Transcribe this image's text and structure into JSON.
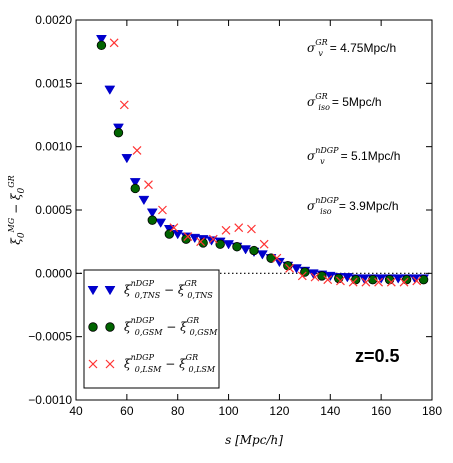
{
  "chart_data": {
    "type": "scatter",
    "title": "",
    "xlabel": "s [Mpc/h]",
    "ylabel": "ξ0^MG − ξ0^GR",
    "xlim": [
      40,
      180
    ],
    "ylim": [
      -0.001,
      0.002
    ],
    "xticks": [
      40,
      60,
      80,
      100,
      120,
      140,
      160,
      180
    ],
    "yticks": [
      -0.001,
      -0.0005,
      0.0,
      0.0005,
      0.001,
      0.0015,
      0.002
    ],
    "xtick_labels": [
      "40",
      "60",
      "80",
      "100",
      "120",
      "140",
      "160",
      "180"
    ],
    "ytick_labels": [
      "−0.0010",
      "−0.0005",
      "0.0000",
      "0.0005",
      "0.0010",
      "0.0015",
      "0.0020"
    ],
    "reference_line": {
      "y": 0.0,
      "style": "dotted"
    },
    "legend_position": "lower-left",
    "annotations": [
      {
        "prefix": "σ",
        "sub": "v",
        "sup": "GR",
        "value": "= 4.75Mpc/h"
      },
      {
        "prefix": "σ",
        "sub": "iso",
        "sup": "GR",
        "value": "= 5Mpc/h"
      },
      {
        "prefix": "σ",
        "sub": "v",
        "sup": "nDGP",
        "value": "= 5.1Mpc/h"
      },
      {
        "prefix": "σ",
        "sub": "iso",
        "sup": "nDGP",
        "value": "= 3.9Mpc/h"
      }
    ],
    "redshift_label": "z=0.5",
    "series": [
      {
        "name": "ξ0,TNS^nDGP − ξ0,TNS^GR",
        "legend": {
          "a": "ξ",
          "a_sup": "nDGP",
          "a_sub": "0,TNS",
          "op": " − ",
          "b": "ξ",
          "b_sup": "GR",
          "b_sub": "0,TNS"
        },
        "marker": "triangle-down",
        "color": "#0000cc",
        "points": [
          [
            50,
            0.00185
          ],
          [
            53.3,
            0.00145
          ],
          [
            56.7,
            0.00115
          ],
          [
            60,
            0.00091
          ],
          [
            63.3,
            0.00072
          ],
          [
            66.7,
            0.00058
          ],
          [
            70,
            0.00048
          ],
          [
            73.3,
            0.0004
          ],
          [
            76.7,
            0.00035
          ],
          [
            80,
            0.00031
          ],
          [
            83.3,
            0.00029
          ],
          [
            86.7,
            0.00028
          ],
          [
            90,
            0.00027
          ],
          [
            93.3,
            0.00026
          ],
          [
            96.7,
            0.00025
          ],
          [
            100,
            0.00023
          ],
          [
            103.3,
            0.00021
          ],
          [
            106.7,
            0.00019
          ],
          [
            110,
            0.00017
          ],
          [
            113.3,
            0.00015
          ],
          [
            116.7,
            0.00012
          ],
          [
            120,
            9e-05
          ],
          [
            123.3,
            6e-05
          ],
          [
            126.7,
            4e-05
          ],
          [
            130,
            2e-05
          ],
          [
            133.3,
            0.0
          ],
          [
            136.7,
            -1e-05
          ],
          [
            140,
            -2e-05
          ],
          [
            143.3,
            -3e-05
          ],
          [
            146.7,
            -3e-05
          ],
          [
            150,
            -4e-05
          ],
          [
            153.3,
            -4e-05
          ],
          [
            156.7,
            -4e-05
          ],
          [
            160,
            -4e-05
          ],
          [
            163.3,
            -4e-05
          ],
          [
            166.7,
            -4e-05
          ],
          [
            170,
            -4e-05
          ],
          [
            173.3,
            -4e-05
          ],
          [
            176.7,
            -4e-05
          ]
        ]
      },
      {
        "name": "ξ0,GSM^nDGP − ξ0,GSM^GR",
        "legend": {
          "a": "ξ",
          "a_sup": "nDGP",
          "a_sub": "0,GSM",
          "op": " − ",
          "b": "ξ",
          "b_sup": "GR",
          "b_sub": "0,GSM"
        },
        "marker": "circle",
        "color": "#006400",
        "points": [
          [
            50,
            0.0018
          ],
          [
            56.7,
            0.00111
          ],
          [
            63.3,
            0.00067
          ],
          [
            70,
            0.00042
          ],
          [
            76.7,
            0.00031
          ],
          [
            83.3,
            0.00027
          ],
          [
            90,
            0.00024
          ],
          [
            96.7,
            0.00023
          ],
          [
            103.3,
            0.00021
          ],
          [
            110,
            0.00018
          ],
          [
            116.7,
            0.00012
          ],
          [
            123.3,
            6e-05
          ],
          [
            130,
            1e-05
          ],
          [
            136.7,
            -2e-05
          ],
          [
            143.3,
            -4e-05
          ],
          [
            150,
            -5e-05
          ],
          [
            156.7,
            -5e-05
          ],
          [
            163.3,
            -5e-05
          ],
          [
            170,
            -5e-05
          ],
          [
            176.7,
            -5e-05
          ]
        ]
      },
      {
        "name": "ξ0,LSM^nDGP − ξ0,LSM^GR",
        "legend": {
          "a": "ξ",
          "a_sup": "nDGP",
          "a_sub": "0,LSM",
          "op": " − ",
          "b": "ξ",
          "b_sup": "GR",
          "b_sub": "0,LSM"
        },
        "marker": "x",
        "color": "#ff3333",
        "points": [
          [
            55,
            0.00182
          ],
          [
            59,
            0.00133
          ],
          [
            64,
            0.00097
          ],
          [
            68.5,
            0.0007
          ],
          [
            74,
            0.0005
          ],
          [
            78.5,
            0.00036
          ],
          [
            84,
            0.00029
          ],
          [
            89,
            0.00025
          ],
          [
            94,
            0.00027
          ],
          [
            99,
            0.00034
          ],
          [
            104,
            0.00036
          ],
          [
            109,
            0.00035
          ],
          [
            114,
            0.00023
          ],
          [
            119,
            0.00012
          ],
          [
            124,
            4e-05
          ],
          [
            129,
            -2e-05
          ],
          [
            134,
            -3e-05
          ],
          [
            139,
            -5e-05
          ],
          [
            144,
            -6e-05
          ],
          [
            149,
            -7e-05
          ],
          [
            154,
            -7e-05
          ],
          [
            159,
            -7e-05
          ],
          [
            164,
            -7e-05
          ],
          [
            169,
            -7e-05
          ],
          [
            174,
            -6e-05
          ]
        ]
      }
    ]
  }
}
